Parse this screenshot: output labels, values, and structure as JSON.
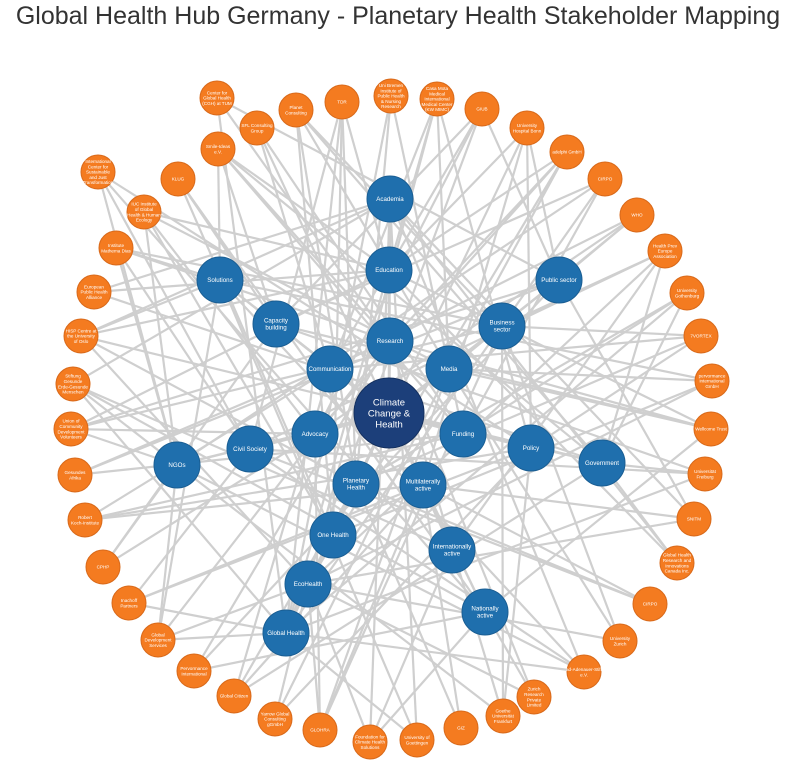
{
  "title": "Global Health Hub Germany - Planetary Health Stakeholder Mapping",
  "colors": {
    "organization": "#f47b20",
    "category": "#1f6fad",
    "center": "#1c3f7a",
    "edge": "#cfcfcf"
  },
  "center_node": {
    "label": "Climate Change & Health"
  },
  "category_nodes": [
    {
      "label": "Academia"
    },
    {
      "label": "Education"
    },
    {
      "label": "Solutions"
    },
    {
      "label": "Capacity building"
    },
    {
      "label": "Research"
    },
    {
      "label": "Business sector"
    },
    {
      "label": "Public sector"
    },
    {
      "label": "Communication"
    },
    {
      "label": "Media"
    },
    {
      "label": "Advocacy"
    },
    {
      "label": "Civil Society"
    },
    {
      "label": "Funding"
    },
    {
      "label": "Policy"
    },
    {
      "label": "Government"
    },
    {
      "label": "NGOs"
    },
    {
      "label": "Planetary Health"
    },
    {
      "label": "Multilaterally active"
    },
    {
      "label": "One Health"
    },
    {
      "label": "Internationally active"
    },
    {
      "label": "EcoHealth"
    },
    {
      "label": "Global Health"
    },
    {
      "label": "Nationally active"
    }
  ],
  "organization_nodes": [
    {
      "label": "Center for Global Health (CGH) at TUM"
    },
    {
      "label": "SFL Consulting Group"
    },
    {
      "label": "Planet Consulting"
    },
    {
      "label": "TDR"
    },
    {
      "label": "Uni Bremen Institute of Public Health & Nursing Research"
    },
    {
      "label": "Casa Mota Medical International Medical Center (KW MIMC)"
    },
    {
      "label": "GIUB"
    },
    {
      "label": "University Hospital Bonn"
    },
    {
      "label": "adelphi GmbH"
    },
    {
      "label": "CIRPO"
    },
    {
      "label": "WHO"
    },
    {
      "label": "Health Prev Europe Association"
    },
    {
      "label": "University Gothenburg"
    },
    {
      "label": "7VORTEX"
    },
    {
      "label": "pervormance international GmbH"
    },
    {
      "label": "Wellcome Trust"
    },
    {
      "label": "Universität Freiburg"
    },
    {
      "label": "SNITM"
    },
    {
      "label": "Global Health Research and Innovations Canada Inc."
    },
    {
      "label": "CIRPO"
    },
    {
      "label": "University Zurich"
    },
    {
      "label": "ad-Adenauer-Stift e.V."
    },
    {
      "label": "Zurich Research Private Limited"
    },
    {
      "label": "Goethe Universität Frankfurt"
    },
    {
      "label": "GIZ"
    },
    {
      "label": "University of Goettingen"
    },
    {
      "label": "Foundation for Climate Health Solutions"
    },
    {
      "label": "GLOHRA"
    },
    {
      "label": "Yarrow Global Consulting gGmbH"
    },
    {
      "label": "Global Citizen"
    },
    {
      "label": "Pervormance International"
    },
    {
      "label": "Global Development Services"
    },
    {
      "label": "Inachoff Partners"
    },
    {
      "label": "CPHP"
    },
    {
      "label": "Robert Koch-Institute"
    },
    {
      "label": "Gesundes Afrika"
    },
    {
      "label": "Union of Community Development Volunteers"
    },
    {
      "label": "Stiftung Gesunde Erde-Gesunde Menschen"
    },
    {
      "label": "HISP Centre at the University of Oslo"
    },
    {
      "label": "European Public Health Alliance"
    },
    {
      "label": "Institute Mathema Dias"
    },
    {
      "label": "IUC Institute of Global Health & Human Ecology"
    },
    {
      "label": "KLUG"
    },
    {
      "label": "Smile-Ideas e.V."
    },
    {
      "label": "International Center for Sustainable and Just Transformation"
    }
  ]
}
